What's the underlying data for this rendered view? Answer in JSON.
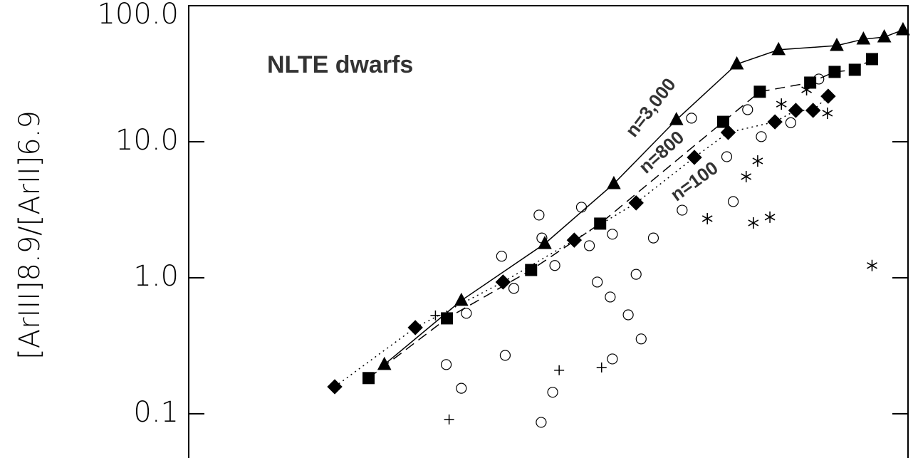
{
  "chart_data": {
    "type": "scatter",
    "ylabel": "[ArIII]8.9/[ArII]6.9",
    "annotations": [
      "NLTE dwarfs",
      "n=3,000",
      "n=800",
      "n=100"
    ],
    "yscale": "log",
    "xlim": [
      0,
      100
    ],
    "ylim": [
      0.0473,
      100
    ],
    "yticks": [
      {
        "value": 0.1,
        "label": "0.1"
      },
      {
        "value": 1,
        "label": "1.0"
      },
      {
        "value": 10,
        "label": "10.0"
      },
      {
        "value": 100,
        "label": "100.0"
      }
    ],
    "series": [
      {
        "marker": "triangle",
        "fill": "filled",
        "linestyle": "solid",
        "color": "#000000",
        "x": [
          27.2,
          37.9,
          49.5,
          59.1,
          67.8,
          76.2,
          82.0,
          90.1,
          93.8,
          96.7,
          99.3
        ],
        "values": [
          0.23,
          0.68,
          1.78,
          4.91,
          14.5,
          37.2,
          47.4,
          50.9,
          56.7,
          58.8,
          66.4
        ]
      },
      {
        "marker": "square",
        "fill": "filled",
        "linestyle": "dashed",
        "color": "#000000",
        "x": [
          25.0,
          35.9,
          47.6,
          57.2,
          74.3,
          79.4,
          86.4,
          89.8,
          92.6,
          95.0
        ],
        "values": [
          0.183,
          0.503,
          1.14,
          2.5,
          14.0,
          23.3,
          27.2,
          32.6,
          33.8,
          40.5
        ]
      },
      {
        "marker": "diamond",
        "fill": "filled",
        "linestyle": "dotted",
        "color": "#000000",
        "x": [
          20.3,
          31.5,
          43.7,
          53.6,
          62.2,
          70.3,
          75.0,
          81.5,
          84.4,
          86.8,
          88.9
        ],
        "values": [
          0.158,
          0.43,
          0.93,
          1.89,
          3.55,
          7.67,
          11.7,
          14.0,
          17.0,
          17.0,
          21.6
        ]
      },
      {
        "marker": "circle",
        "fill": "open",
        "linestyle": "none",
        "color": "#000000",
        "x": [
          43.5,
          48.7,
          54.6,
          49.1,
          50.9,
          55.7,
          58.9,
          64.6,
          56.8,
          58.6,
          61.1,
          62.2,
          45.2,
          38.6,
          44.0,
          37.9,
          50.6,
          49.0,
          58.9,
          62.9,
          68.6,
          69.9,
          74.8,
          75.7,
          77.7,
          79.6,
          83.7,
          87.6,
          35.8
        ],
        "values": [
          1.44,
          2.89,
          3.3,
          1.96,
          1.23,
          1.72,
          2.09,
          1.96,
          0.93,
          0.722,
          0.534,
          1.06,
          0.835,
          0.548,
          0.269,
          0.154,
          0.144,
          0.0865,
          0.253,
          0.355,
          3.14,
          14.9,
          7.76,
          3.63,
          17.2,
          10.9,
          13.8,
          28.9,
          0.23
        ]
      },
      {
        "marker": "asterisk",
        "fill": "open",
        "linestyle": "none",
        "color": "#000000",
        "x": [
          72.1,
          78.5,
          79.1,
          77.5,
          80.8,
          82.4,
          85.9,
          88.8,
          95.0
        ],
        "values": [
          2.72,
          2.53,
          7.22,
          5.54,
          2.79,
          18.9,
          24.1,
          16.2,
          1.23
        ]
      },
      {
        "marker": "plus",
        "fill": "open",
        "linestyle": "none",
        "color": "#000000",
        "x": [
          34.3,
          36.2,
          51.5,
          57.4
        ],
        "values": [
          0.528,
          0.0908,
          0.209,
          0.219
        ]
      }
    ]
  }
}
